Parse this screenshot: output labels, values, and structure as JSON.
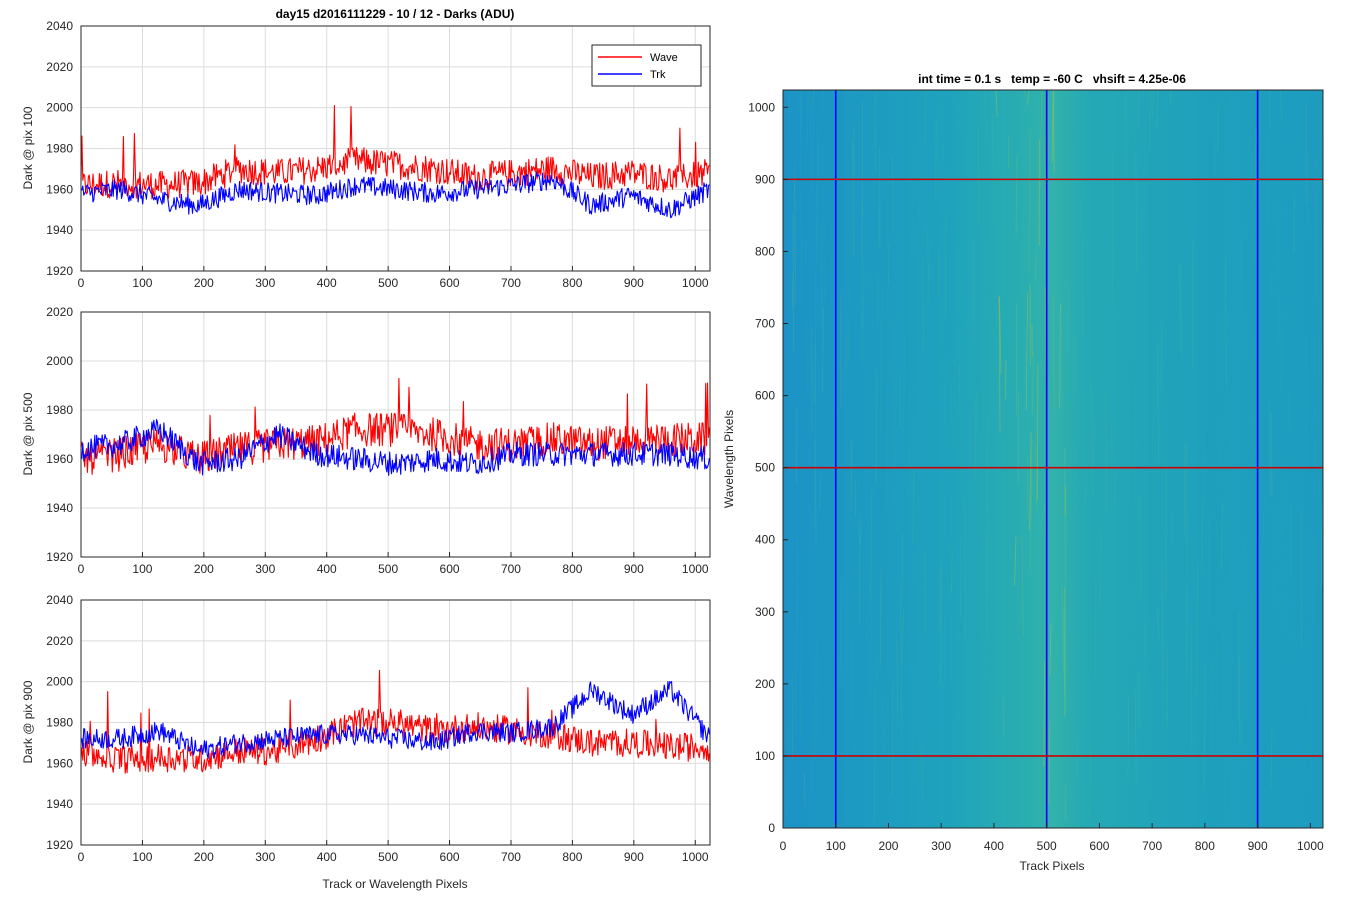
{
  "chart_data": [
    {
      "type": "line",
      "title": "day15 d2016111229 - 10 / 12 - Darks (ADU)",
      "xlabel": "",
      "ylabel": "Dark @ pix 100",
      "xlim": [
        0,
        1024
      ],
      "ylim": [
        1920,
        2040
      ],
      "xticks": [
        0,
        100,
        200,
        300,
        400,
        500,
        600,
        700,
        800,
        900,
        1000
      ],
      "yticks": [
        1920,
        1940,
        1960,
        1980,
        2000,
        2020,
        2040
      ],
      "grid": true,
      "legend": {
        "position": "top-right",
        "entries": [
          "Wave",
          "Trk"
        ]
      },
      "sampling": "every 64 pixels (approximate mean trace read from the plotted noise)",
      "series": [
        {
          "name": "Wave",
          "color": "#ff0000",
          "x": [
            0,
            64,
            128,
            192,
            256,
            320,
            384,
            448,
            512,
            576,
            640,
            704,
            768,
            832,
            896,
            960,
            1024
          ],
          "y": [
            1962,
            1963,
            1962,
            1963,
            1970,
            1968,
            1970,
            1974,
            1972,
            1970,
            1966,
            1968,
            1970,
            1966,
            1968,
            1965,
            1968
          ]
        },
        {
          "name": "Trk",
          "color": "#0000ff",
          "x": [
            0,
            64,
            128,
            192,
            256,
            320,
            384,
            448,
            512,
            576,
            640,
            704,
            768,
            832,
            896,
            960,
            1024
          ],
          "y": [
            1958,
            1960,
            1955,
            1952,
            1960,
            1958,
            1957,
            1962,
            1960,
            1958,
            1960,
            1962,
            1965,
            1952,
            1957,
            1950,
            1960
          ]
        }
      ]
    },
    {
      "type": "line",
      "title": "",
      "xlabel": "",
      "ylabel": "Dark @ pix 500",
      "xlim": [
        0,
        1024
      ],
      "ylim": [
        1920,
        2020
      ],
      "xticks": [
        0,
        100,
        200,
        300,
        400,
        500,
        600,
        700,
        800,
        900,
        1000
      ],
      "yticks": [
        1920,
        1940,
        1960,
        1980,
        2000,
        2020
      ],
      "grid": true,
      "sampling": "every 64 pixels (approximate mean trace read from the plotted noise)",
      "series": [
        {
          "name": "Wave",
          "color": "#ff0000",
          "x": [
            0,
            64,
            128,
            192,
            256,
            320,
            384,
            448,
            512,
            576,
            640,
            704,
            768,
            832,
            896,
            960,
            1024
          ],
          "y": [
            1960,
            1962,
            1966,
            1960,
            1964,
            1966,
            1967,
            1972,
            1972,
            1970,
            1966,
            1966,
            1968,
            1966,
            1968,
            1968,
            1968
          ]
        },
        {
          "name": "Trk",
          "color": "#0000ff",
          "x": [
            0,
            64,
            128,
            192,
            256,
            320,
            384,
            448,
            512,
            576,
            640,
            704,
            768,
            832,
            896,
            960,
            1024
          ],
          "y": [
            1964,
            1966,
            1972,
            1958,
            1960,
            1970,
            1962,
            1960,
            1958,
            1960,
            1958,
            1962,
            1962,
            1962,
            1962,
            1962,
            1960
          ]
        }
      ]
    },
    {
      "type": "line",
      "title": "",
      "xlabel": "Track or Wavelength Pixels",
      "ylabel": "Dark @ pix 900",
      "xlim": [
        0,
        1024
      ],
      "ylim": [
        1920,
        2040
      ],
      "xticks": [
        0,
        100,
        200,
        300,
        400,
        500,
        600,
        700,
        800,
        900,
        1000
      ],
      "yticks": [
        1920,
        1940,
        1960,
        1980,
        2000,
        2020,
        2040
      ],
      "grid": true,
      "sampling": "every 64 pixels (approximate mean trace read from the plotted noise)",
      "series": [
        {
          "name": "Wave",
          "color": "#ff0000",
          "x": [
            0,
            64,
            128,
            192,
            256,
            320,
            384,
            448,
            512,
            576,
            640,
            704,
            768,
            832,
            896,
            960,
            1024
          ],
          "y": [
            1965,
            1962,
            1963,
            1962,
            1966,
            1966,
            1972,
            1980,
            1980,
            1976,
            1978,
            1976,
            1974,
            1970,
            1970,
            1968,
            1968
          ]
        },
        {
          "name": "Trk",
          "color": "#0000ff",
          "x": [
            0,
            64,
            128,
            192,
            256,
            320,
            384,
            448,
            512,
            576,
            640,
            704,
            768,
            832,
            896,
            960,
            1024
          ],
          "y": [
            1972,
            1972,
            1976,
            1966,
            1970,
            1972,
            1974,
            1974,
            1972,
            1970,
            1976,
            1975,
            1978,
            1996,
            1984,
            1996,
            1972
          ]
        }
      ]
    },
    {
      "type": "heatmap",
      "title": "int time = 0.1 s   temp = -60 C   vhsift = 4.25e-06",
      "xlabel": "Track Pixels",
      "ylabel": "Wavelength Pixels",
      "xlim": [
        0,
        1024
      ],
      "ylim": [
        0,
        1024
      ],
      "xticks": [
        0,
        100,
        200,
        300,
        400,
        500,
        600,
        700,
        800,
        900,
        1000
      ],
      "yticks": [
        0,
        100,
        200,
        300,
        400,
        500,
        600,
        700,
        800,
        900,
        1000
      ],
      "colormap": [
        "#1f8fc2",
        "#1aa6b6",
        "#2bb5a4",
        "#6dbd73",
        "#c8c23c"
      ],
      "note": "dark-frame image, mostly uniform teal with faint yellow vertical streaks around track pixels 420-520",
      "marker_lines": {
        "vertical": {
          "color": "#0000ff",
          "x": [
            100,
            500,
            900
          ]
        },
        "horizontal": {
          "color": "#cc0000",
          "y": [
            100,
            500,
            900
          ]
        }
      }
    }
  ]
}
